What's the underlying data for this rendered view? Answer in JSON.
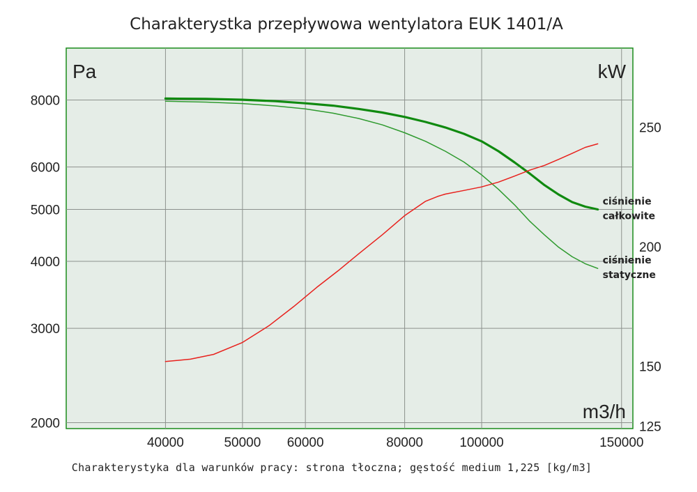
{
  "chart_data": {
    "type": "line",
    "title": "Charakterystka przepływowa wentylatora EUK 1401/A",
    "caption": "Charakterystyka dla warunków pracy: strona tłoczna; gęstość medium 1,225 [kg/m3]",
    "x_unit": "m3/h",
    "y_left_unit": "Pa",
    "y_right_unit": "kW",
    "x_scale": "log",
    "y_left_scale": "log",
    "xlim": [
      30000,
      155000
    ],
    "ylim_left": [
      1950,
      10000
    ],
    "ylim_right": [
      124,
      283
    ],
    "x_ticks": [
      {
        "value": 40000,
        "label": "40000"
      },
      {
        "value": 50000,
        "label": "50000"
      },
      {
        "value": 60000,
        "label": "60000"
      },
      {
        "value": 80000,
        "label": "80000"
      },
      {
        "value": 100000,
        "label": "100000"
      },
      {
        "value": 150000,
        "label": "150000"
      }
    ],
    "y_left_ticks": [
      {
        "value": 2000,
        "label": "2000"
      },
      {
        "value": 3000,
        "label": "3000"
      },
      {
        "value": 4000,
        "label": "4000"
      },
      {
        "value": 5000,
        "label": "5000"
      },
      {
        "value": 6000,
        "label": "6000"
      },
      {
        "value": 8000,
        "label": "8000"
      }
    ],
    "y_right_ticks": [
      {
        "value": 125,
        "label": "125"
      },
      {
        "value": 150,
        "label": "150"
      },
      {
        "value": 200,
        "label": "200"
      },
      {
        "value": 250,
        "label": "250"
      }
    ],
    "series": [
      {
        "name": "ciśnienie całkowite",
        "label_lines": [
          "ciśnienie",
          "całkowite"
        ],
        "axis": "left",
        "color": "#108a10",
        "x": [
          40000,
          45000,
          50000,
          55000,
          60000,
          65000,
          70000,
          75000,
          80000,
          85000,
          90000,
          95000,
          100000,
          105000,
          110000,
          115000,
          120000,
          125000,
          130000,
          135000,
          140000
        ],
        "y": [
          8050,
          8040,
          8010,
          7960,
          7890,
          7810,
          7700,
          7580,
          7440,
          7280,
          7110,
          6920,
          6700,
          6420,
          6120,
          5830,
          5550,
          5330,
          5160,
          5060,
          5000
        ]
      },
      {
        "name": "ciśnienie statyczne",
        "label_lines": [
          "ciśnienie",
          "statyczne"
        ],
        "axis": "left",
        "color": "#2e9a2e",
        "x": [
          40000,
          45000,
          50000,
          55000,
          60000,
          65000,
          70000,
          75000,
          80000,
          85000,
          90000,
          95000,
          100000,
          105000,
          110000,
          115000,
          120000,
          125000,
          130000,
          135000,
          140000
        ],
        "y": [
          7960,
          7930,
          7880,
          7800,
          7700,
          7560,
          7390,
          7190,
          6950,
          6700,
          6420,
          6130,
          5800,
          5450,
          5100,
          4750,
          4480,
          4250,
          4080,
          3960,
          3880
        ]
      },
      {
        "name": "moc",
        "label_lines": [],
        "axis": "right",
        "color": "#e8201c",
        "x": [
          40000,
          43000,
          46000,
          50000,
          54000,
          58000,
          62000,
          66000,
          70000,
          75000,
          80000,
          85000,
          88000,
          90000,
          95000,
          100000,
          105000,
          110000,
          115000,
          120000,
          125000,
          130000,
          135000,
          140000
        ],
        "y": [
          152,
          153,
          155,
          160,
          167,
          175,
          183,
          190,
          197,
          205,
          213,
          219,
          221,
          222,
          223.5,
          225,
          227,
          229.5,
          232,
          234,
          236.5,
          239,
          241.5,
          243
        ]
      }
    ]
  }
}
